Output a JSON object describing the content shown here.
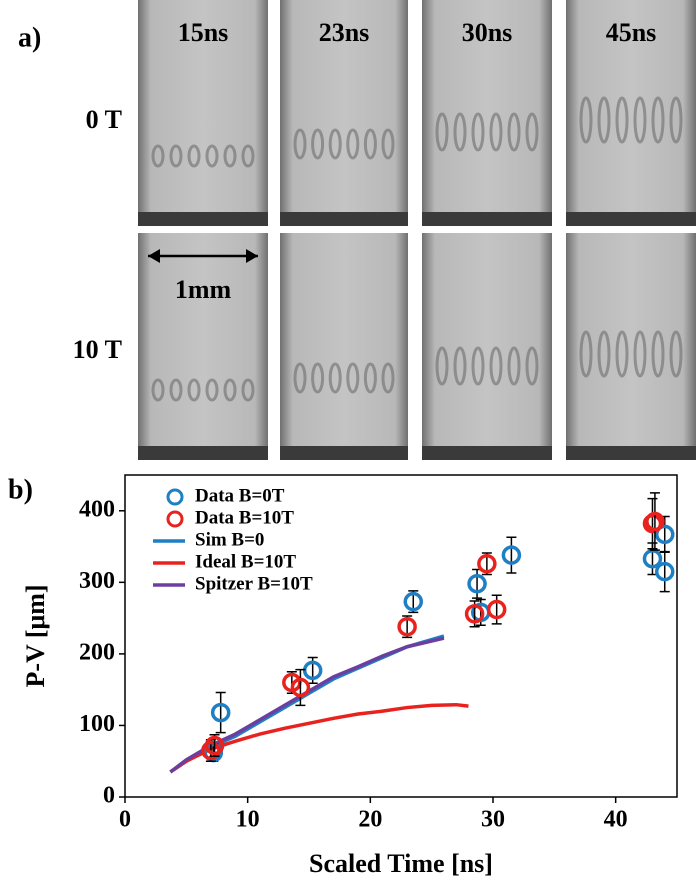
{
  "panel_a": {
    "label": "a)",
    "columns": [
      "15ns",
      "23ns",
      "30ns",
      "45ns"
    ],
    "rows": [
      "0 T",
      "10 T"
    ],
    "scale_label": "1mm"
  },
  "chart_data": {
    "type": "scatter",
    "panel_label": "b)",
    "x_label": "Scaled Time [ns]",
    "y_label": "P-V [μm]",
    "xlim": [
      0,
      45
    ],
    "ylim": [
      0,
      450
    ],
    "xticks": [
      0,
      10,
      20,
      30,
      40
    ],
    "yticks": [
      0,
      100,
      200,
      300,
      400
    ],
    "legend": "top-left",
    "series": [
      {
        "name": "Data B=0T",
        "type": "scatter",
        "color": "#1f7fc4",
        "x": [
          7.2,
          7.8,
          15.3,
          23.5,
          28.7,
          29.0,
          31.5,
          43.0,
          44.0,
          44.0
        ],
        "values": [
          62,
          118,
          177,
          273,
          298,
          258,
          338,
          333,
          367,
          315
        ],
        "errors": [
          12,
          28,
          18,
          15,
          20,
          18,
          25,
          22,
          25,
          28
        ]
      },
      {
        "name": "Data B=10T",
        "type": "scatter",
        "color": "#e8231f",
        "x": [
          7.0,
          7.3,
          13.6,
          14.3,
          23.0,
          28.5,
          29.5,
          30.3,
          43.0,
          43.2
        ],
        "values": [
          65,
          72,
          160,
          153,
          238,
          256,
          326,
          262,
          382,
          385
        ],
        "errors": [
          15,
          15,
          15,
          25,
          15,
          18,
          15,
          20,
          35,
          40
        ]
      },
      {
        "name": "Sim B=0",
        "type": "line",
        "color": "#1f7fc4",
        "x": [
          3.7,
          5,
          7,
          9,
          11,
          13,
          15,
          17,
          19,
          21,
          23,
          26
        ],
        "values": [
          35,
          50,
          70,
          85,
          105,
          125,
          145,
          165,
          180,
          195,
          210,
          225
        ]
      },
      {
        "name": "Ideal B=10T",
        "type": "line",
        "color": "#e8231f",
        "x": [
          3.7,
          5,
          7,
          9,
          11,
          13,
          15,
          17,
          19,
          21,
          23,
          25,
          27,
          28
        ],
        "values": [
          35,
          50,
          67,
          78,
          88,
          96,
          103,
          110,
          116,
          120,
          125,
          128,
          129,
          127
        ]
      },
      {
        "name": "Spitzer B=10T",
        "type": "line",
        "color": "#6b3fa0",
        "x": [
          3.7,
          5,
          7,
          9,
          11,
          13,
          15,
          17,
          19,
          21,
          23,
          26
        ],
        "values": [
          35,
          52,
          72,
          88,
          108,
          128,
          148,
          168,
          182,
          197,
          210,
          222
        ]
      }
    ]
  }
}
